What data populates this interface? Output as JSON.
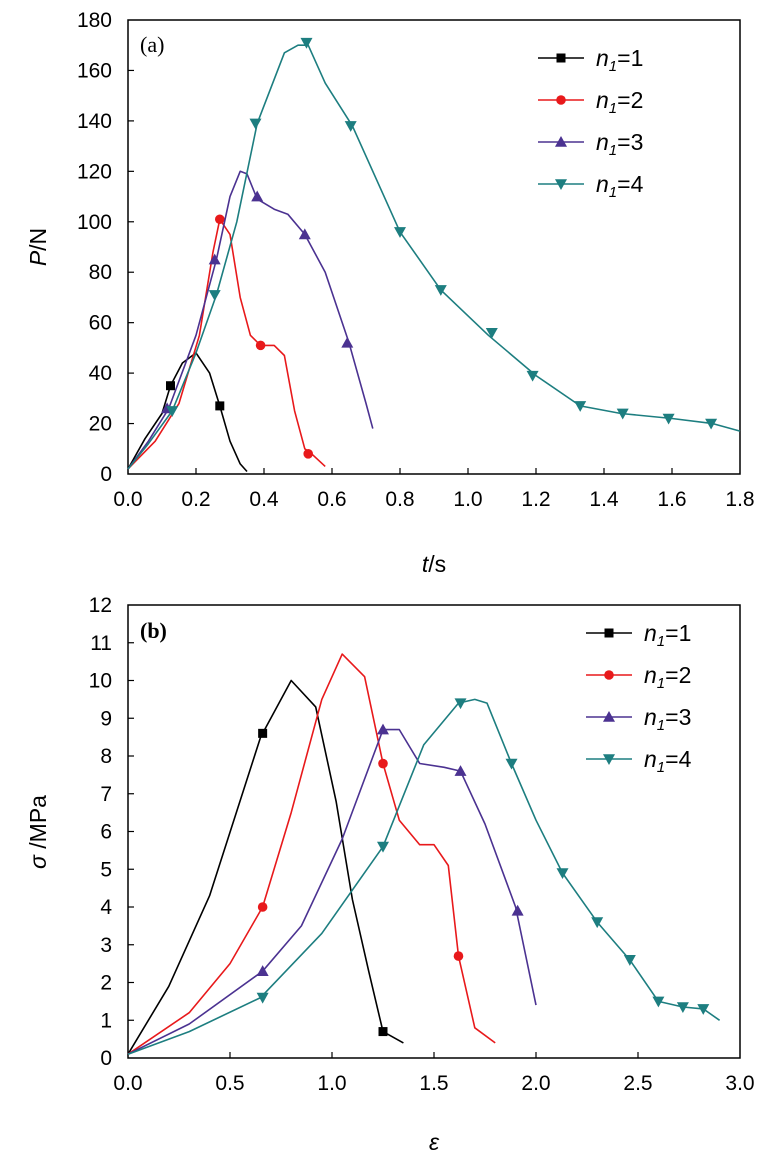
{
  "chart_data": [
    {
      "type": "line",
      "panel_label": "(a)",
      "xlabel": "t/s",
      "ylabel": "P/N",
      "xlim": [
        0,
        1.8
      ],
      "ylim": [
        0,
        180
      ],
      "xticks": [
        "0.0",
        "0.2",
        "0.4",
        "0.6",
        "0.8",
        "1.0",
        "1.2",
        "1.4",
        "1.6",
        "1.8"
      ],
      "yticks": [
        "0",
        "20",
        "40",
        "60",
        "80",
        "100",
        "120",
        "140",
        "160",
        "180"
      ],
      "grid": false,
      "legend_position": "top-right",
      "series": [
        {
          "name": "n1=1",
          "color": "#000000",
          "marker": "square",
          "points": [
            [
              0,
              2
            ],
            [
              0.05,
              14
            ],
            [
              0.1,
              24
            ],
            [
              0.125,
              35
            ],
            [
              0.16,
              44
            ],
            [
              0.2,
              48
            ],
            [
              0.24,
              40
            ],
            [
              0.27,
              27
            ],
            [
              0.3,
              13
            ],
            [
              0.33,
              4
            ],
            [
              0.35,
              1
            ]
          ],
          "markers": [
            [
              0.125,
              35
            ],
            [
              0.27,
              27
            ]
          ]
        },
        {
          "name": "n1=2",
          "color": "#e8191b",
          "marker": "circle",
          "points": [
            [
              0,
              2
            ],
            [
              0.08,
              13
            ],
            [
              0.15,
              28
            ],
            [
              0.21,
              55
            ],
            [
              0.25,
              88
            ],
            [
              0.27,
              101
            ],
            [
              0.3,
              95
            ],
            [
              0.33,
              70
            ],
            [
              0.36,
              55
            ],
            [
              0.39,
              51
            ],
            [
              0.43,
              51
            ],
            [
              0.46,
              47
            ],
            [
              0.49,
              25
            ],
            [
              0.52,
              10
            ],
            [
              0.54,
              8
            ],
            [
              0.58,
              3
            ]
          ],
          "markers": [
            [
              0.27,
              101
            ],
            [
              0.39,
              51
            ],
            [
              0.53,
              8
            ]
          ]
        },
        {
          "name": "n1=3",
          "color": "#4b3291",
          "marker": "triangle-up",
          "points": [
            [
              0,
              2
            ],
            [
              0.06,
              13
            ],
            [
              0.12,
              26
            ],
            [
              0.2,
              55
            ],
            [
              0.26,
              85
            ],
            [
              0.3,
              110
            ],
            [
              0.33,
              120
            ],
            [
              0.35,
              119
            ],
            [
              0.38,
              109
            ],
            [
              0.43,
              105
            ],
            [
              0.47,
              103
            ],
            [
              0.52,
              95
            ],
            [
              0.58,
              80
            ],
            [
              0.65,
              52
            ],
            [
              0.7,
              28
            ],
            [
              0.72,
              18
            ]
          ],
          "markers": [
            [
              0.115,
              26
            ],
            [
              0.255,
              85
            ],
            [
              0.38,
              110
            ],
            [
              0.52,
              95
            ],
            [
              0.645,
              52
            ]
          ]
        },
        {
          "name": "n1=4",
          "color": "#1d7e80",
          "marker": "triangle-down",
          "points": [
            [
              0,
              2
            ],
            [
              0.06,
              12
            ],
            [
              0.13,
              25
            ],
            [
              0.2,
              48
            ],
            [
              0.26,
              71
            ],
            [
              0.32,
              100
            ],
            [
              0.38,
              139
            ],
            [
              0.46,
              167
            ],
            [
              0.5,
              170
            ],
            [
              0.53,
              170
            ],
            [
              0.58,
              155
            ],
            [
              0.66,
              138
            ],
            [
              0.72,
              120
            ],
            [
              0.8,
              96
            ],
            [
              0.92,
              73
            ],
            [
              1.06,
              55
            ],
            [
              1.2,
              39
            ],
            [
              1.33,
              27
            ],
            [
              1.45,
              24
            ],
            [
              1.6,
              22
            ],
            [
              1.72,
              20
            ],
            [
              1.8,
              17
            ]
          ],
          "markers": [
            [
              0.13,
              25
            ],
            [
              0.255,
              71
            ],
            [
              0.375,
              139
            ],
            [
              0.525,
              171
            ],
            [
              0.655,
              138
            ],
            [
              0.8,
              96
            ],
            [
              0.92,
              73
            ],
            [
              1.07,
              56
            ],
            [
              1.19,
              39
            ],
            [
              1.33,
              27
            ],
            [
              1.455,
              24
            ],
            [
              1.59,
              22
            ],
            [
              1.715,
              20
            ]
          ]
        }
      ]
    },
    {
      "type": "line",
      "panel_label": "(b)",
      "xlabel": "ε",
      "ylabel": "σ /MPa",
      "xlim": [
        0,
        3
      ],
      "ylim": [
        0,
        12
      ],
      "xticks": [
        "0.0",
        "0.5",
        "1.0",
        "1.5",
        "2.0",
        "2.5",
        "3.0"
      ],
      "yticks": [
        "0",
        "1",
        "2",
        "3",
        "4",
        "5",
        "6",
        "7",
        "8",
        "9",
        "10",
        "11",
        "12"
      ],
      "grid": false,
      "legend_position": "top-right",
      "series": [
        {
          "name": "n1=1",
          "color": "#000000",
          "marker": "square",
          "points": [
            [
              0,
              0.1
            ],
            [
              0.2,
              1.9
            ],
            [
              0.4,
              4.3
            ],
            [
              0.65,
              8.5
            ],
            [
              0.8,
              10
            ],
            [
              0.92,
              9.3
            ],
            [
              1.02,
              6.8
            ],
            [
              1.1,
              4.2
            ],
            [
              1.18,
              2.3
            ],
            [
              1.25,
              0.7
            ],
            [
              1.35,
              0.4
            ]
          ],
          "markers": [
            [
              0.66,
              8.6
            ],
            [
              1.25,
              0.7
            ]
          ]
        },
        {
          "name": "n1=2",
          "color": "#e8191b",
          "marker": "circle",
          "points": [
            [
              0,
              0.1
            ],
            [
              0.3,
              1.2
            ],
            [
              0.5,
              2.5
            ],
            [
              0.66,
              4
            ],
            [
              0.8,
              6.5
            ],
            [
              0.95,
              9.5
            ],
            [
              1.05,
              10.7
            ],
            [
              1.16,
              10.1
            ],
            [
              1.25,
              7.8
            ],
            [
              1.33,
              6.3
            ],
            [
              1.43,
              5.65
            ],
            [
              1.5,
              5.65
            ],
            [
              1.57,
              5.1
            ],
            [
              1.62,
              2.7
            ],
            [
              1.7,
              0.8
            ],
            [
              1.8,
              0.4
            ]
          ],
          "markers": [
            [
              0.66,
              4
            ],
            [
              1.25,
              7.8
            ],
            [
              1.62,
              2.7
            ]
          ]
        },
        {
          "name": "n1=3",
          "color": "#4b3291",
          "marker": "triangle-up",
          "points": [
            [
              0,
              0.1
            ],
            [
              0.3,
              0.9
            ],
            [
              0.66,
              2.3
            ],
            [
              0.85,
              3.5
            ],
            [
              1.05,
              5.8
            ],
            [
              1.25,
              8.7
            ],
            [
              1.33,
              8.7
            ],
            [
              1.43,
              7.8
            ],
            [
              1.55,
              7.7
            ],
            [
              1.63,
              7.6
            ],
            [
              1.75,
              6.2
            ],
            [
              1.9,
              4
            ],
            [
              2,
              1.4
            ]
          ],
          "markers": [
            [
              0.66,
              2.3
            ],
            [
              1.25,
              8.7
            ],
            [
              1.63,
              7.6
            ],
            [
              1.91,
              3.9
            ]
          ]
        },
        {
          "name": "n1=4",
          "color": "#1d7e80",
          "marker": "triangle-down",
          "points": [
            [
              0,
              0.1
            ],
            [
              0.3,
              0.7
            ],
            [
              0.65,
              1.6
            ],
            [
              0.95,
              3.3
            ],
            [
              1.25,
              5.6
            ],
            [
              1.45,
              8.3
            ],
            [
              1.62,
              9.4
            ],
            [
              1.7,
              9.5
            ],
            [
              1.76,
              9.4
            ],
            [
              1.88,
              7.8
            ],
            [
              2,
              6.3
            ],
            [
              2.13,
              4.9
            ],
            [
              2.3,
              3.6
            ],
            [
              2.46,
              2.6
            ],
            [
              2.6,
              1.5
            ],
            [
              2.72,
              1.35
            ],
            [
              2.82,
              1.3
            ],
            [
              2.9,
              1
            ]
          ],
          "markers": [
            [
              0.66,
              1.6
            ],
            [
              1.25,
              5.6
            ],
            [
              1.63,
              9.4
            ],
            [
              1.88,
              7.8
            ],
            [
              2.13,
              4.9
            ],
            [
              2.3,
              3.6
            ],
            [
              2.46,
              2.6
            ],
            [
              2.6,
              1.5
            ],
            [
              2.72,
              1.35
            ],
            [
              2.82,
              1.3
            ]
          ]
        }
      ]
    }
  ]
}
